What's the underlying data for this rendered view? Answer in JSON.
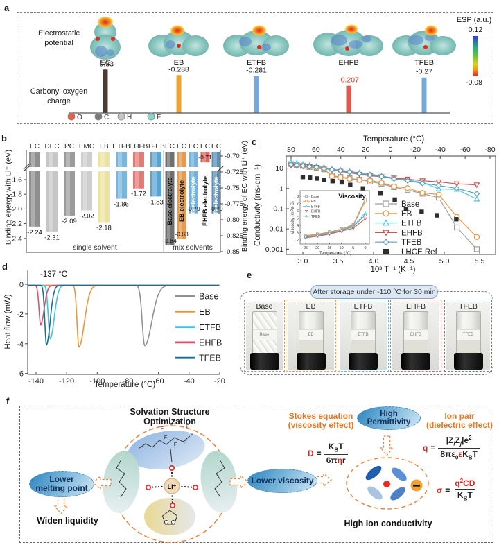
{
  "panel_labels": {
    "a": "a",
    "b": "b",
    "c": "c",
    "d": "d",
    "e": "e",
    "f": "f"
  },
  "panel_a": {
    "electrostatic_label": [
      "Electrostatic",
      "potential"
    ],
    "carbonyl_label": [
      "Carbonyl oxygen",
      "charge"
    ],
    "esp": {
      "title": "ESP (a.u.)",
      "max": "0.12",
      "min": "-0.08"
    },
    "molecules": [
      {
        "name": "EC",
        "charge": -0.33,
        "charge_label": "-0.33",
        "bar_color": "#4a3c33",
        "label_color": "#1a1a1a"
      },
      {
        "name": "EB",
        "charge": -0.288,
        "charge_label": "-0.288",
        "bar_color": "#efa32d",
        "label_color": "#1a1a1a"
      },
      {
        "name": "ETFB",
        "charge": -0.281,
        "charge_label": "-0.281",
        "bar_color": "#76a8d8",
        "label_color": "#1a1a1a"
      },
      {
        "name": "EHFB",
        "charge": -0.207,
        "charge_label": "-0.207",
        "bar_color": "#e4574d",
        "label_color": "#d43c30"
      },
      {
        "name": "TFEB",
        "charge": -0.27,
        "charge_label": "-0.27",
        "bar_color": "#76a8d8",
        "label_color": "#1a1a1a"
      }
    ],
    "atoms": [
      {
        "symbol": "O",
        "color": "#e0614f"
      },
      {
        "symbol": "C",
        "color": "#7a7a7a"
      },
      {
        "symbol": "H",
        "color": "#c6c6c6"
      },
      {
        "symbol": "F",
        "color": "#8ed2c9"
      }
    ]
  },
  "chart_data": [
    {
      "id": "carbonyl_charge",
      "type": "bar",
      "title": "Carbonyl oxygen charge",
      "categories": [
        "EC",
        "EB",
        "ETFB",
        "EHFB",
        "TFEB"
      ],
      "values": [
        -0.33,
        -0.288,
        -0.281,
        -0.207,
        -0.27
      ]
    },
    {
      "id": "binding_energy",
      "type": "bar",
      "left_axis": {
        "label": "Binding energy with Li⁺ (eV)",
        "ticks": [
          "-1.6",
          "-1.8",
          "-2.0",
          "-2.2",
          "-2.4"
        ]
      },
      "right_axis": {
        "label": "Binding energy of EC with Li⁺ (eV)",
        "ticks": [
          "-0.70",
          "-0.725",
          "-0.75",
          "-0.775",
          "-0.80",
          "-0.825",
          "-0.85"
        ]
      },
      "groups": [
        {
          "label": "single solvent"
        },
        {
          "label": "mix solvents"
        }
      ],
      "single_bars": [
        {
          "label": "EC",
          "value": -2.24,
          "color": "#8f8f8f"
        },
        {
          "label": "DEC",
          "value": -2.31,
          "color": "#c6c6c6"
        },
        {
          "label": "PC",
          "value": -2.09,
          "color": "#9b9b9b"
        },
        {
          "label": "EMC",
          "value": -2.02,
          "color": "#cdcdcd"
        },
        {
          "label": "EB",
          "value": -2.18,
          "color": "#ece49e"
        },
        {
          "label": "ETFB",
          "value": -1.86,
          "color": "#79b6dd"
        },
        {
          "label": "EHFB",
          "value": -1.72,
          "color": "#e37a77"
        },
        {
          "label": "TFEB",
          "value": -1.83,
          "color": "#5ba3d0"
        }
      ],
      "mix_bars": [
        {
          "top_label": "EC",
          "name": "Base electrolyte",
          "value": -0.84,
          "color": "#6f6f6f",
          "text_color": "#111"
        },
        {
          "top_label": "EC",
          "name": "EB electrolyte",
          "value": -0.83,
          "color": "#e89a4a",
          "text_color": "#111"
        },
        {
          "top_label": "EC",
          "name": "ETFB electrolyte",
          "value": -0.79,
          "color": "#74b3dc",
          "text_color": "#fff"
        },
        {
          "top_label": "EC",
          "name": "EHFB electrolyte",
          "value": -0.71,
          "color": "#e2635f",
          "text_color": "#111"
        },
        {
          "top_label": "EC",
          "name": "TFEB electrolyte",
          "value": -0.79,
          "color": "#5b8fb5",
          "text_color": "#fff"
        }
      ]
    },
    {
      "id": "conductivity",
      "type": "line",
      "top_axis_label": "Temperature (°C)",
      "top_ticks": [
        "80",
        "60",
        "40",
        "20",
        "0",
        "-20",
        "-40",
        "-60",
        "-80"
      ],
      "xlabel": "10³ T⁻¹ (K⁻¹)",
      "x_ticks": [
        "3.0",
        "3.5",
        "4.0",
        "4.5",
        "5.0",
        "5.5"
      ],
      "ylabel": "Conductivity (ms·cm⁻¹)",
      "y_ticks": [
        "10",
        "1",
        "0.1",
        "0.01",
        "0.001"
      ],
      "temperatures": [
        80,
        70,
        60,
        50,
        40,
        30,
        20,
        10,
        0,
        -10,
        -20,
        -30,
        -40,
        -50,
        -60,
        -70,
        -80,
        -90
      ],
      "series": [
        {
          "name": "Base",
          "marker": "square",
          "color": "#9c9c9c",
          "values": [
            16,
            14.5,
            13,
            11.5,
            10,
            8.8,
            4.3,
            3.7,
            3.2,
            2.7,
            2.2,
            1.7,
            1.15,
            0.85,
            0.55,
            0.35,
            0.012,
            0.001
          ]
        },
        {
          "name": "EB",
          "marker": "circle",
          "color": "#e8973f",
          "values": [
            16.5,
            15,
            13.5,
            12,
            10.3,
            9,
            4.0,
            3.5,
            3.0,
            2.6,
            2.5,
            1.9,
            1.25,
            1.05,
            0.6,
            0.5,
            0.04,
            0.004
          ]
        },
        {
          "name": "ETFB",
          "marker": "triangleUp",
          "color": "#52c0e4",
          "values": [
            20,
            18,
            16,
            14,
            12.5,
            11,
            9,
            8,
            7,
            6,
            5,
            4.2,
            3.2,
            2.6,
            2.0,
            0.95,
            0.9,
            0.3
          ]
        },
        {
          "name": "EHFB",
          "marker": "triangleDown",
          "color": "#d4504f",
          "values": [
            13.5,
            13,
            12.5,
            12,
            11,
            10,
            8,
            7,
            6,
            5,
            4.2,
            3.8,
            3.3,
            2.9,
            2.4,
            2.1,
            1.7,
            1.5
          ]
        },
        {
          "name": "TFEB",
          "marker": "diamond",
          "color": "#5f9fb0",
          "values": [
            15,
            14,
            13,
            12,
            11,
            9.5,
            8.5,
            7.5,
            6.5,
            5.5,
            4.6,
            3.9,
            3.0,
            2.4,
            1.8,
            1.4,
            1.0,
            0.55
          ]
        }
      ],
      "lhce": {
        "name": "LHCE Ref",
        "marker": "square-filled",
        "color": "#2e2e2e",
        "points": [
          [
            3.0,
            3.7
          ],
          [
            3.1,
            3.4
          ],
          [
            3.2,
            3.1
          ],
          [
            3.3,
            2.7
          ],
          [
            3.42,
            2.3
          ],
          [
            3.55,
            2.0
          ],
          [
            3.67,
            1.5
          ],
          [
            3.85,
            1.0
          ],
          [
            4.1,
            0.6
          ],
          [
            4.3,
            0.28
          ],
          [
            4.46,
            0.095
          ],
          [
            4.68,
            0.07
          ],
          [
            4.9,
            0.047
          ],
          [
            5.17,
            0.03
          ]
        ]
      },
      "inset": {
        "title": "Viscosity",
        "ylabel": "Viscosity (mPa·S)",
        "xlabel": "Temperature (°C)",
        "x_ticks": [
          "25",
          "20",
          "15",
          "10",
          "5",
          "0"
        ],
        "y_ticks": [
          "2",
          "3",
          "4",
          "5",
          "6",
          "7",
          "8"
        ],
        "temperatures": [
          25,
          20,
          15,
          10,
          5,
          0
        ],
        "series": [
          {
            "name": "Base",
            "marker": "square",
            "color": "#9c9c9c",
            "values": [
              2.6,
              2.8,
              3.1,
              3.5,
              4.1,
              7.6
            ]
          },
          {
            "name": "EB",
            "marker": "circle",
            "color": "#e8973f",
            "values": [
              2.5,
              2.7,
              3.0,
              3.4,
              4.0,
              7.3
            ]
          },
          {
            "name": "ETFB",
            "marker": "triangleUp",
            "color": "#52c0e4",
            "values": [
              2.4,
              2.6,
              2.9,
              3.3,
              3.9,
              5.7
            ]
          },
          {
            "name": "EHFB",
            "marker": "triangleDown",
            "color": "#d4504f",
            "values": [
              2.3,
              2.5,
              2.8,
              3.2,
              3.6,
              4.9
            ]
          },
          {
            "name": "TFEB",
            "marker": "diamond",
            "color": "#5f9fb0",
            "values": [
              2.4,
              2.6,
              2.9,
              3.3,
              3.8,
              5.4
            ]
          }
        ]
      }
    },
    {
      "id": "dsc",
      "type": "line",
      "annotation": "-137 °C",
      "ylabel": "Heat flow (mW)",
      "xlabel": "Temperature (°C)",
      "x_ticks": [
        "-140",
        "-120",
        "-100",
        "-80",
        "-60",
        "-40",
        "-20"
      ],
      "y_ticks": [
        "0",
        "-2",
        "-4",
        "-6"
      ],
      "series": [
        {
          "name": "Base",
          "color": "#909090",
          "peak": -69,
          "depth": 4.05,
          "sigma_left": 2.3,
          "sigma_right": 6.5
        },
        {
          "name": "EB",
          "color": "#e8973f",
          "peak": -112,
          "depth": 4.15,
          "sigma_left": 1.7,
          "sigma_right": 5.0
        },
        {
          "name": "ETFB",
          "color": "#44bfe6",
          "peak": -130.8,
          "depth": 3.6,
          "sigma_left": 1.7,
          "sigma_right": 3.8
        },
        {
          "name": "EHFB",
          "color": "#dd5068",
          "peak": -137,
          "depth": 2.65,
          "sigma_left": 1.5,
          "sigma_right": 3.2
        },
        {
          "name": "TFEB",
          "color": "#1e6e8e",
          "peak": -133.2,
          "depth": 4.0,
          "sigma_left": 1.5,
          "sigma_right": 3.4
        }
      ]
    }
  ],
  "panel_e": {
    "badge": "After storage under -110 °C for 30 min",
    "vials": [
      {
        "name": "Base",
        "color": "#9a9a9a",
        "state": "frozen"
      },
      {
        "name": "EB",
        "color": "#e8a050",
        "state": "liquid"
      },
      {
        "name": "ETFB",
        "color": "#6ab4dc",
        "state": "liquid"
      },
      {
        "name": "EHFB",
        "color": "#e06060",
        "state": "liquid"
      },
      {
        "name": "TFEB",
        "color": "#5a7fa8",
        "state": "liquid"
      }
    ]
  },
  "panel_f": {
    "title": [
      "Solvation Structure",
      "Optimization"
    ],
    "lower_melting": [
      "Lower",
      "melting point"
    ],
    "widen": "Widen liquidity",
    "lower_viscosity": "Lower viscosity",
    "stokes": [
      "Stokes equation",
      "(viscosity effect)"
    ],
    "permittivity": [
      "High",
      "Permittivity"
    ],
    "ion_pair": [
      "Ion pair",
      "(dielectric effect)"
    ],
    "high_ion": "High Ion conductivity",
    "li_label": "Li⁺",
    "eq_d": {
      "lhs": "D",
      "eq": "=",
      "num_k": "K",
      "num_b": "B",
      "num_t": "T",
      "den_1": "6π",
      "den_eta": "η",
      "den_r": "r"
    },
    "eq_q": {
      "lhs": "q",
      "eq": "=",
      "num_1": "|Z",
      "num_sub1": "i",
      "num_2": "Z",
      "num_sub2": "j",
      "num_3": "|e",
      "num_sup": "2",
      "den_1": "8πε",
      "den_sub1": "0",
      "den_2": "ε",
      "den_3": "K",
      "den_sub2": "B",
      "den_4": "T"
    },
    "eq_sigma": {
      "lhs": "σ",
      "eq": "=",
      "num_1": "q",
      "num_sup": "2",
      "num_2": "CD",
      "den_1": "K",
      "den_sub": "B",
      "den_2": "T"
    }
  }
}
